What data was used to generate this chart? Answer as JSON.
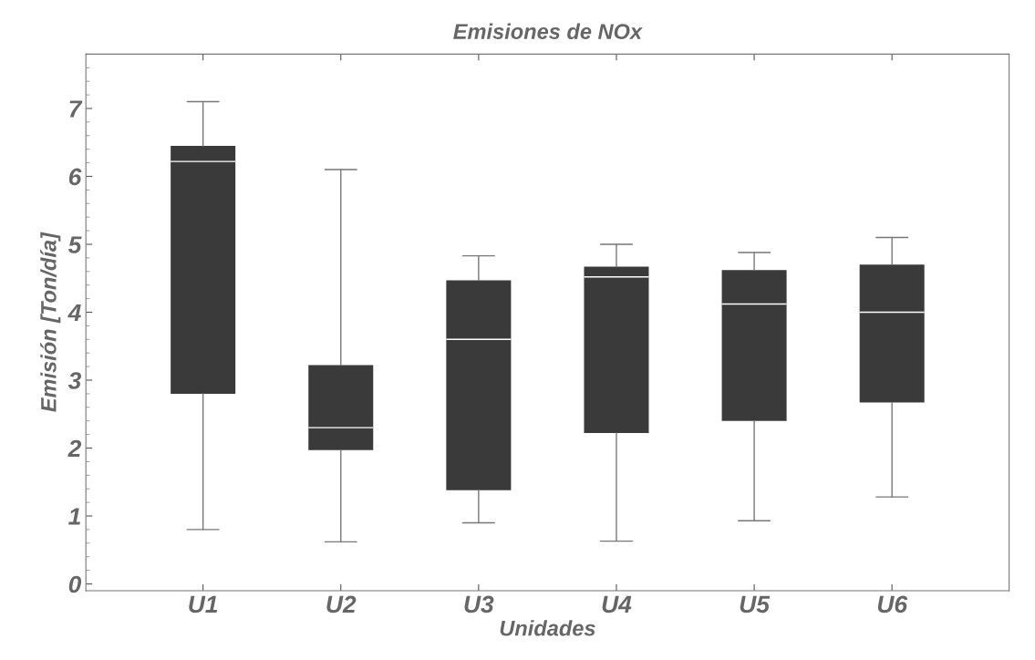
{
  "chart_data": {
    "type": "box",
    "title": "Emisiones de NOx",
    "xlabel": "Unidades",
    "ylabel": "Emisión [Ton/día]",
    "categories": [
      "U1",
      "U2",
      "U3",
      "U4",
      "U5",
      "U6"
    ],
    "color": "#3a3a3a",
    "boxes": [
      {
        "low": 0.8,
        "q1": 2.8,
        "median": 6.22,
        "q3": 6.45,
        "high": 7.1
      },
      {
        "low": 0.62,
        "q1": 1.97,
        "median": 2.3,
        "q3": 3.22,
        "high": 6.1
      },
      {
        "low": 0.9,
        "q1": 1.38,
        "median": 3.6,
        "q3": 4.47,
        "high": 4.83
      },
      {
        "low": 0.63,
        "q1": 2.22,
        "median": 4.52,
        "q3": 4.67,
        "high": 5.0
      },
      {
        "low": 0.93,
        "q1": 2.4,
        "median": 4.12,
        "q3": 4.62,
        "high": 4.88
      },
      {
        "low": 1.28,
        "q1": 2.67,
        "median": 4.0,
        "q3": 4.7,
        "high": 5.1
      }
    ],
    "ylim": [
      -0.1,
      7.8
    ],
    "yticks": [
      0,
      1,
      2,
      3,
      4,
      5,
      6,
      7
    ],
    "grid": false
  }
}
